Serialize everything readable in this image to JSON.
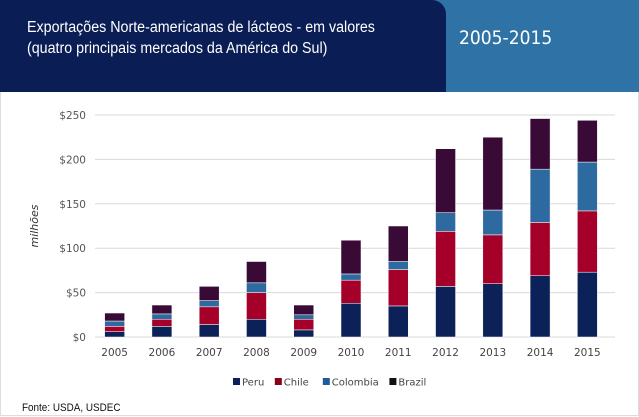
{
  "header": {
    "title_line1": "Exportações Norte-americanas de lácteos - em valores",
    "title_line2": "(quatro principais mercados da América do Sul)",
    "period": "2005-2015"
  },
  "source": "Fonte: USDA, USDEC",
  "chart_data": {
    "type": "bar",
    "stacked": true,
    "title": "Exportações Norte-americanas de lácteos - em valores (quatro principais mercados da América do Sul)",
    "xlabel": "",
    "ylabel": "milhões",
    "ylim": [
      0,
      250
    ],
    "yticks": [
      0,
      50,
      100,
      150,
      200,
      250
    ],
    "ytick_labels": [
      "$0",
      "$50",
      "$100",
      "$150",
      "$200",
      "$250"
    ],
    "grid": true,
    "legend_position": "bottom",
    "categories": [
      "2005",
      "2006",
      "2007",
      "2008",
      "2009",
      "2010",
      "2011",
      "2012",
      "2013",
      "2014",
      "2015"
    ],
    "series": [
      {
        "name": "Peru",
        "color": "#0b2158",
        "values": [
          6,
          12,
          14,
          20,
          8,
          38,
          35,
          57,
          60,
          69,
          73
        ]
      },
      {
        "name": "Chile",
        "color": "#a5002a",
        "values": [
          6,
          8,
          20,
          30,
          12,
          26,
          41,
          62,
          55,
          60,
          69
        ]
      },
      {
        "name": "Colombia",
        "color": "#2c6aa0",
        "values": [
          6,
          6,
          7,
          11,
          5,
          7,
          9,
          21,
          28,
          60,
          55
        ]
      },
      {
        "name": "Brazil",
        "color": "#3a0a36",
        "values": [
          9,
          10,
          16,
          24,
          11,
          38,
          40,
          72,
          82,
          57,
          47
        ]
      }
    ]
  }
}
